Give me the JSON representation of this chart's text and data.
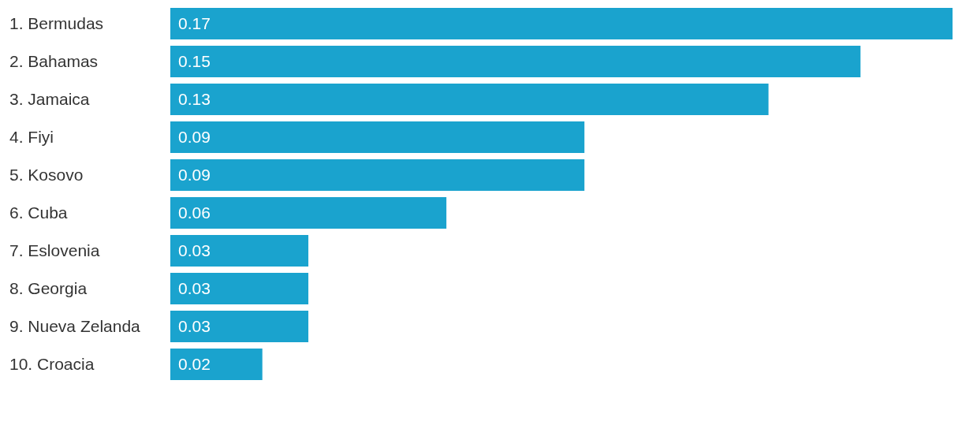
{
  "chart_data": {
    "type": "bar",
    "orientation": "horizontal",
    "categories": [
      "1. Bermudas",
      "2. Bahamas",
      "3. Jamaica",
      "4. Fiyi",
      "5. Kosovo",
      "6. Cuba",
      "7. Eslovenia",
      "8. Georgia",
      "9. Nueva Zelanda",
      "10. Croacia"
    ],
    "values": [
      0.17,
      0.15,
      0.13,
      0.09,
      0.09,
      0.06,
      0.03,
      0.03,
      0.03,
      0.02
    ],
    "color": "#1aa3ce",
    "data_labels": true
  }
}
